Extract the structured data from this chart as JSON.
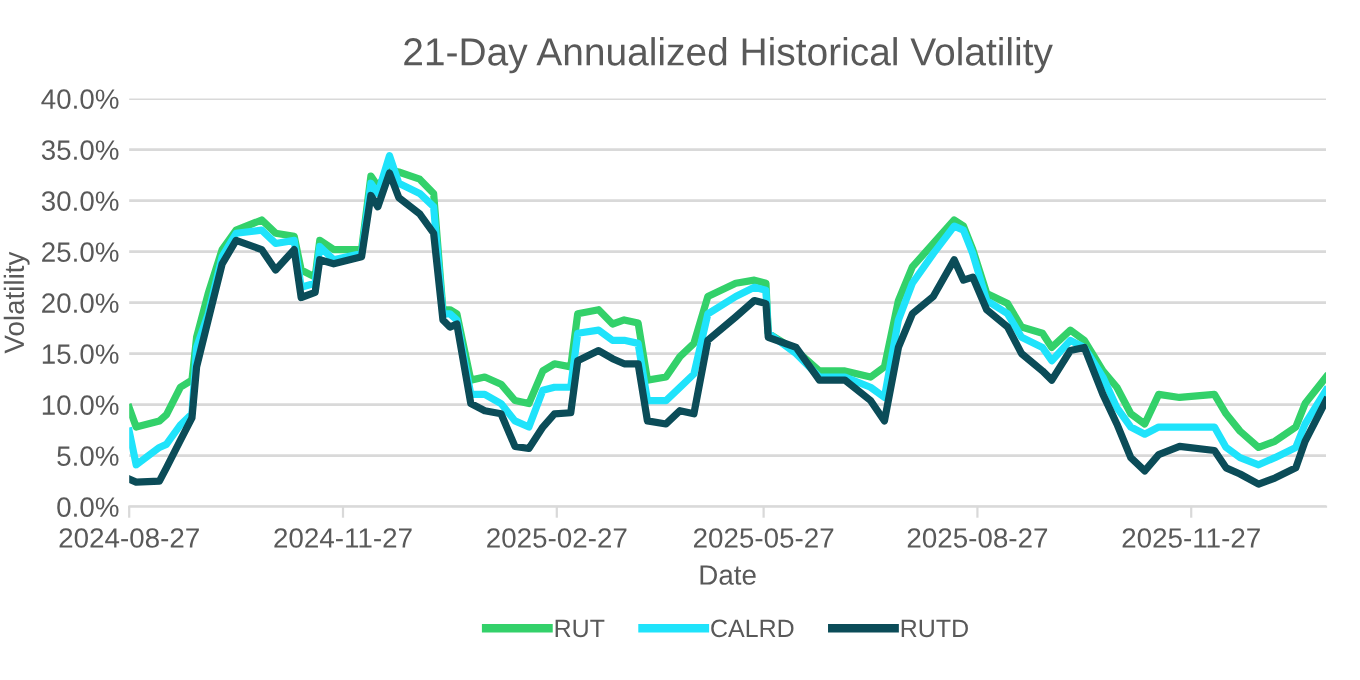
{
  "chart_data": {
    "type": "line",
    "title": "21-Day Annualized Historical Volatility",
    "xlabel": "Date",
    "ylabel": "Volatility",
    "x": [
      "2024-08-27",
      "2024-08-30",
      "2024-09-09",
      "2024-09-12",
      "2024-09-18",
      "2024-09-23",
      "2024-09-25",
      "2024-09-30",
      "2024-10-06",
      "2024-10-12",
      "2024-10-23",
      "2024-10-29",
      "2024-11-06",
      "2024-11-09",
      "2024-11-15",
      "2024-11-17",
      "2024-11-23",
      "2024-12-05",
      "2024-12-09",
      "2024-12-12",
      "2024-12-17",
      "2024-12-21",
      "2024-12-30",
      "2025-01-05",
      "2025-01-09",
      "2025-01-12",
      "2025-01-15",
      "2025-01-21",
      "2025-01-27",
      "2025-02-03",
      "2025-02-09",
      "2025-02-15",
      "2025-02-21",
      "2025-02-26",
      "2025-03-05",
      "2025-03-08",
      "2025-03-17",
      "2025-03-23",
      "2025-03-28",
      "2025-04-03",
      "2025-04-07",
      "2025-04-15",
      "2025-04-21",
      "2025-04-27",
      "2025-05-03",
      "2025-05-15",
      "2025-05-23",
      "2025-05-28",
      "2025-05-29",
      "2025-06-10",
      "2025-06-20",
      "2025-07-01",
      "2025-07-12",
      "2025-07-18",
      "2025-07-24",
      "2025-07-30",
      "2025-08-08",
      "2025-08-17",
      "2025-08-21",
      "2025-08-25",
      "2025-08-31",
      "2025-09-09",
      "2025-09-15",
      "2025-09-24",
      "2025-09-28",
      "2025-10-06",
      "2025-10-12",
      "2025-10-20",
      "2025-10-26",
      "2025-11-01",
      "2025-11-07",
      "2025-11-13",
      "2025-11-22",
      "2025-12-07",
      "2025-12-12",
      "2025-12-18",
      "2025-12-26",
      "2026-01-02",
      "2026-01-11",
      "2026-01-15",
      "2026-01-24"
    ],
    "series": [
      {
        "name": "RUT",
        "color": "#33d16a",
        "values": [
          9.7,
          7.8,
          8.4,
          9.0,
          11.7,
          12.4,
          16.6,
          20.9,
          25.2,
          27.1,
          28.1,
          26.8,
          26.5,
          23.2,
          22.5,
          26.1,
          25.2,
          25.2,
          32.4,
          31.4,
          33.0,
          32.8,
          32.1,
          30.7,
          19.3,
          19.3,
          18.9,
          12.4,
          12.7,
          12.0,
          10.4,
          10.1,
          13.3,
          14.0,
          13.7,
          18.9,
          19.3,
          17.9,
          18.3,
          18.0,
          12.4,
          12.7,
          14.7,
          16.0,
          20.6,
          21.9,
          22.2,
          21.9,
          17.0,
          15.3,
          13.3,
          13.3,
          12.7,
          13.7,
          20.2,
          23.5,
          25.8,
          28.1,
          27.5,
          25.2,
          20.9,
          19.9,
          17.6,
          17.0,
          15.6,
          17.3,
          16.3,
          13.3,
          11.7,
          9.1,
          8.1,
          11.0,
          10.7,
          11.0,
          9.1,
          7.4,
          5.8,
          6.4,
          7.8,
          10.1,
          12.7
        ]
      },
      {
        "name": "CALRD",
        "color": "#1fe3fb",
        "values": [
          7.4,
          4.1,
          5.8,
          6.1,
          8.0,
          9.1,
          15.6,
          18.9,
          24.5,
          26.8,
          27.1,
          25.8,
          26.1,
          21.5,
          21.9,
          25.5,
          24.2,
          24.8,
          31.7,
          30.7,
          34.4,
          31.7,
          30.7,
          29.4,
          18.9,
          18.9,
          18.3,
          11.0,
          11.0,
          10.1,
          8.4,
          7.8,
          11.4,
          11.7,
          11.7,
          17.0,
          17.3,
          16.3,
          16.3,
          16.0,
          10.4,
          10.4,
          11.7,
          13.0,
          18.9,
          20.6,
          21.5,
          21.2,
          17.0,
          15.0,
          12.7,
          12.7,
          11.7,
          10.7,
          18.3,
          21.9,
          24.8,
          27.5,
          27.1,
          24.8,
          20.2,
          18.9,
          16.6,
          15.6,
          14.3,
          16.3,
          15.6,
          12.7,
          9.7,
          7.8,
          7.1,
          7.8,
          7.8,
          7.8,
          5.8,
          4.8,
          4.1,
          4.8,
          5.8,
          8.1,
          11.4
        ]
      },
      {
        "name": "RUTD",
        "color": "#0b4c58",
        "values": [
          2.7,
          2.4,
          2.5,
          3.8,
          6.5,
          8.7,
          13.7,
          18.3,
          23.8,
          26.1,
          25.2,
          23.2,
          25.2,
          20.5,
          21.0,
          24.2,
          23.8,
          24.5,
          30.5,
          29.4,
          32.7,
          30.3,
          28.7,
          26.8,
          18.3,
          17.6,
          17.9,
          10.1,
          9.4,
          9.1,
          5.9,
          5.7,
          7.8,
          9.1,
          9.2,
          14.3,
          15.3,
          14.5,
          14.0,
          14.0,
          8.4,
          8.1,
          9.4,
          9.1,
          16.3,
          18.6,
          20.2,
          19.9,
          16.6,
          15.6,
          12.4,
          12.4,
          10.4,
          8.4,
          15.6,
          18.9,
          20.6,
          24.2,
          22.2,
          22.5,
          19.3,
          17.6,
          15.0,
          13.3,
          12.4,
          15.3,
          15.6,
          11.0,
          8.1,
          4.8,
          3.5,
          5.1,
          5.9,
          5.5,
          3.8,
          3.2,
          2.2,
          2.8,
          3.8,
          6.4,
          10.4
        ]
      }
    ],
    "xlim": [
      "2024-08-27",
      "2026-01-24"
    ],
    "xticks": [
      "2024-08-27",
      "2024-11-27",
      "2025-02-27",
      "2025-05-27",
      "2025-08-27",
      "2025-11-27"
    ],
    "ylim": [
      0,
      40
    ],
    "yticks": [
      {
        "value": 0,
        "label": "0.0%"
      },
      {
        "value": 5,
        "label": "5.0%"
      },
      {
        "value": 10,
        "label": "10.0%"
      },
      {
        "value": 15,
        "label": "15.0%"
      },
      {
        "value": 20,
        "label": "20.0%"
      },
      {
        "value": 25,
        "label": "25.0%"
      },
      {
        "value": 30,
        "label": "30.0%"
      },
      {
        "value": 35,
        "label": "35.0%"
      },
      {
        "value": 40,
        "label": "40.0%"
      }
    ],
    "grid": "y",
    "legend": "bottom",
    "line_style": "solid",
    "marker": "none"
  }
}
